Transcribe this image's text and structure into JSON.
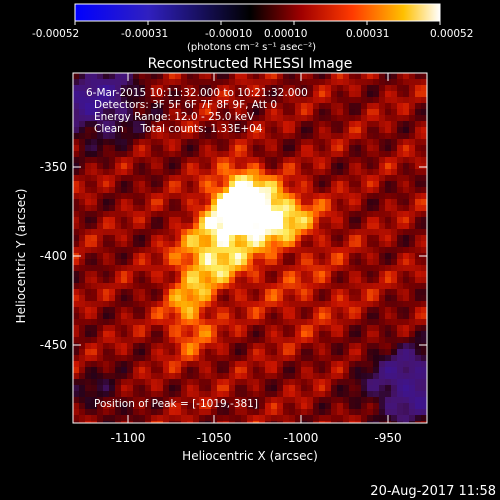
{
  "colorbar": {
    "ticks": [
      "-0.00052",
      "-0.00031",
      "-0.00010",
      "0.00010",
      "0.00031",
      "0.00052"
    ],
    "unit_label": "(photons cm⁻² s⁻¹ asec⁻²)"
  },
  "title": "Reconstructed RHESSI Image",
  "info": {
    "time_range": "6-Mar-2015 10:11:32.000 to 10:21:32.000",
    "detectors": "Detectors: 3F 5F 6F 7F 8F 9F, Att 0",
    "energy_range": "Energy Range: 12.0 - 25.0 keV",
    "clean_counts": "Clean     Total counts: 1.33E+04",
    "peak_position": "Position of Peak = [-1019,-381]"
  },
  "axes": {
    "xlabel": "Heliocentric X (arcsec)",
    "ylabel": "Heliocentric Y (arcsec)",
    "xticks": [
      "-1100",
      "-1050",
      "-1000",
      "-950"
    ],
    "yticks": [
      "-350",
      "-400",
      "-450"
    ]
  },
  "footer": {
    "date": "20-Aug-2017 11:58"
  },
  "colors": {
    "background": "#000000",
    "colormap": [
      "#0000ff",
      "#000000",
      "#ff0000",
      "#ffff00",
      "#ffffff"
    ]
  }
}
